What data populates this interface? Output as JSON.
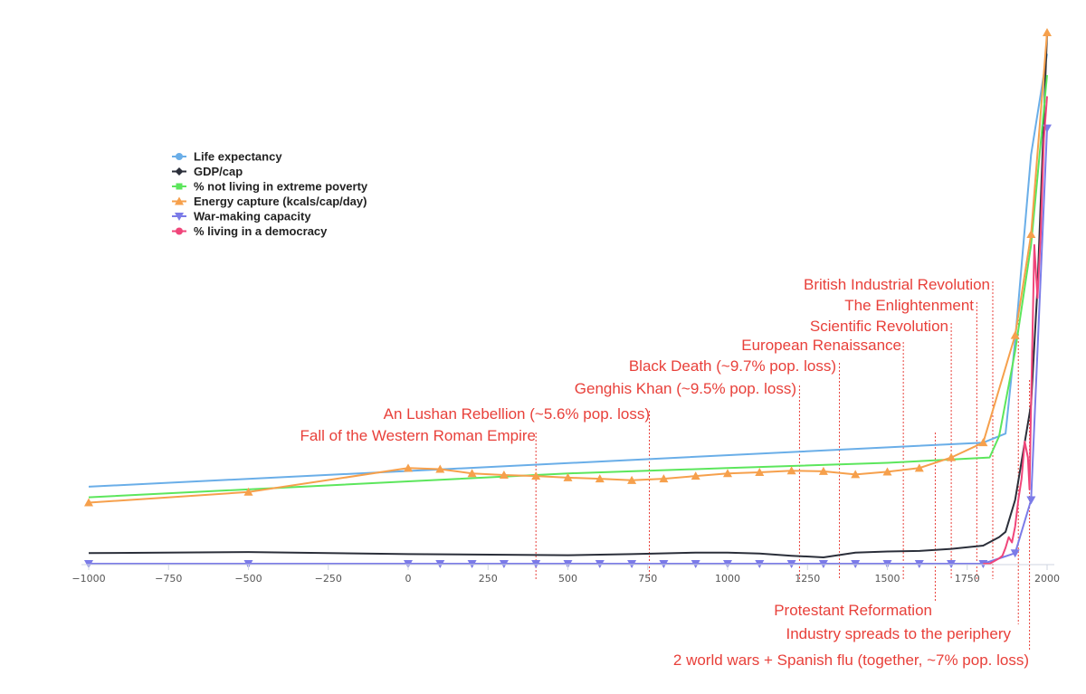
{
  "chart_data": {
    "type": "line",
    "title": "",
    "xlabel": "",
    "ylabel": "",
    "xlim": [
      -1000,
      2000
    ],
    "x_ticks": [
      -1000,
      -750,
      -500,
      -250,
      0,
      250,
      500,
      750,
      1000,
      1250,
      1500,
      1750,
      2000
    ],
    "y_relative_scale": [
      0,
      1
    ],
    "y_ticks_shown": false,
    "grid": false,
    "legend_position": "top-left",
    "series": [
      {
        "name": "Life expectancy",
        "color": "#6aaee8",
        "marker": "circle",
        "x": [
          -1000,
          1800,
          1870,
          1900,
          1950,
          2000
        ],
        "y": [
          0.145,
          0.228,
          0.245,
          0.42,
          0.77,
          0.96
        ]
      },
      {
        "name": "GDP/cap",
        "color": "#2b2f3a",
        "marker": "diamond",
        "x": [
          -1000,
          -500,
          0,
          500,
          700,
          900,
          1000,
          1100,
          1200,
          1300,
          1400,
          1500,
          1600,
          1700,
          1800,
          1850,
          1870,
          1900,
          1950,
          1970,
          2000
        ],
        "y": [
          0.02,
          0.022,
          0.018,
          0.016,
          0.018,
          0.021,
          0.021,
          0.019,
          0.015,
          0.012,
          0.021,
          0.023,
          0.024,
          0.028,
          0.034,
          0.05,
          0.06,
          0.12,
          0.3,
          0.52,
          1.0
        ]
      },
      {
        "name": "% not living in extreme poverty",
        "color": "#5ce65c",
        "marker": "square",
        "x": [
          -1000,
          0,
          500,
          1000,
          1500,
          1820,
          1850,
          1900,
          1950,
          2000
        ],
        "y": [
          0.125,
          0.155,
          0.17,
          0.18,
          0.19,
          0.2,
          0.24,
          0.4,
          0.6,
          0.92
        ]
      },
      {
        "name": "Energy capture (kcals/cap/day)",
        "color": "#f6a04c",
        "marker": "triangle-up",
        "x": [
          -1000,
          -500,
          0,
          100,
          200,
          300,
          400,
          500,
          600,
          700,
          800,
          900,
          1000,
          1100,
          1200,
          1300,
          1400,
          1500,
          1600,
          1700,
          1800,
          1900,
          1950,
          2000
        ],
        "y": [
          0.115,
          0.135,
          0.18,
          0.178,
          0.17,
          0.167,
          0.165,
          0.162,
          0.16,
          0.157,
          0.16,
          0.165,
          0.17,
          0.172,
          0.175,
          0.174,
          0.168,
          0.173,
          0.18,
          0.2,
          0.228,
          0.43,
          0.62,
          1.0
        ]
      },
      {
        "name": "War-making capacity",
        "color": "#7b7be8",
        "marker": "triangle-down",
        "x": [
          -1000,
          -500,
          0,
          100,
          200,
          300,
          400,
          500,
          600,
          700,
          800,
          900,
          1000,
          1100,
          1200,
          1300,
          1400,
          1500,
          1600,
          1700,
          1800,
          1900,
          1950,
          2000
        ],
        "y": [
          0.0,
          0.0,
          0.0,
          0.0,
          0.0,
          0.0,
          0.0,
          0.0,
          0.0,
          0.0,
          0.0,
          0.0,
          0.0,
          0.0,
          0.0,
          0.0,
          0.0,
          0.0,
          0.0,
          0.0,
          0.0,
          0.02,
          0.12,
          0.82
        ]
      },
      {
        "name": "% living in a democracy",
        "color": "#f0457a",
        "marker": "circle",
        "x": [
          1800,
          1820,
          1850,
          1860,
          1870,
          1880,
          1890,
          1900,
          1910,
          1920,
          1930,
          1940,
          1945,
          1950,
          1960,
          1970,
          1980,
          1990,
          2000
        ],
        "y": [
          0.0,
          0.0,
          0.01,
          0.015,
          0.03,
          0.05,
          0.04,
          0.07,
          0.12,
          0.16,
          0.23,
          0.2,
          0.14,
          0.3,
          0.6,
          0.5,
          0.62,
          0.8,
          0.88
        ]
      }
    ],
    "annotations": [
      {
        "label": "Fall of the Western Roman Empire",
        "x": 400
      },
      {
        "label": "An Lushan Rebellion (~5.6% pop. loss)",
        "x": 755
      },
      {
        "label": "Genghis Khan (~9.5% pop. loss)",
        "x": 1225
      },
      {
        "label": "Black Death (~9.7% pop. loss)",
        "x": 1350
      },
      {
        "label": "European Renaissance",
        "x": 1550
      },
      {
        "label": "Scientific Revolution",
        "x": 1700
      },
      {
        "label": "The Enlightenment",
        "x": 1780
      },
      {
        "label": "British Industrial Revolution",
        "x": 1830
      },
      {
        "label": "Protestant Reformation",
        "x": 1650
      },
      {
        "label": "Industry spreads to the periphery",
        "x": 1910
      },
      {
        "label": "2 world wars + Spanish flu (together, ~7%  pop. loss)",
        "x": 1945
      }
    ]
  }
}
